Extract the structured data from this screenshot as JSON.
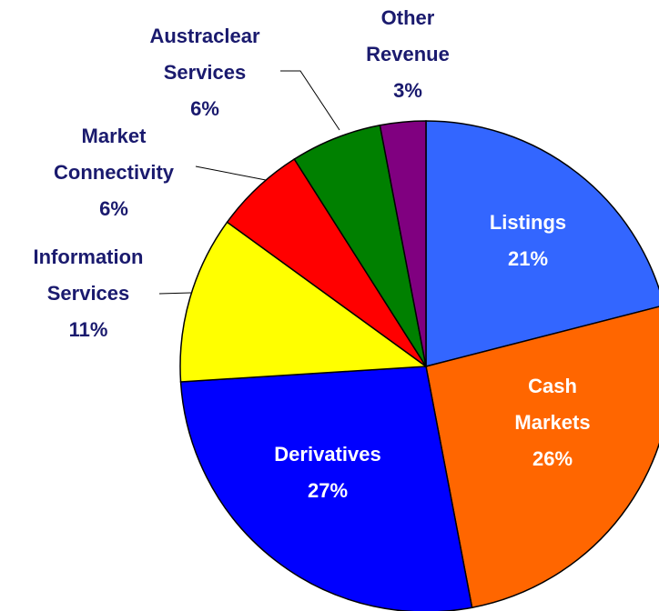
{
  "chart_data": {
    "type": "pie",
    "categories": [
      "Listings",
      "Cash Markets",
      "Derivatives",
      "Information Services",
      "Market Connectivity",
      "Austraclear Services",
      "Other Revenue"
    ],
    "values": [
      21,
      26,
      27,
      11,
      6,
      6,
      3
    ],
    "value_labels": [
      "21%",
      "26%",
      "27%",
      "11%",
      "6%",
      "6%",
      "3%"
    ],
    "colors": [
      "#3366ff",
      "#ff6600",
      "#0000ff",
      "#ffff00",
      "#ff0000",
      "#008000",
      "#800080"
    ]
  }
}
